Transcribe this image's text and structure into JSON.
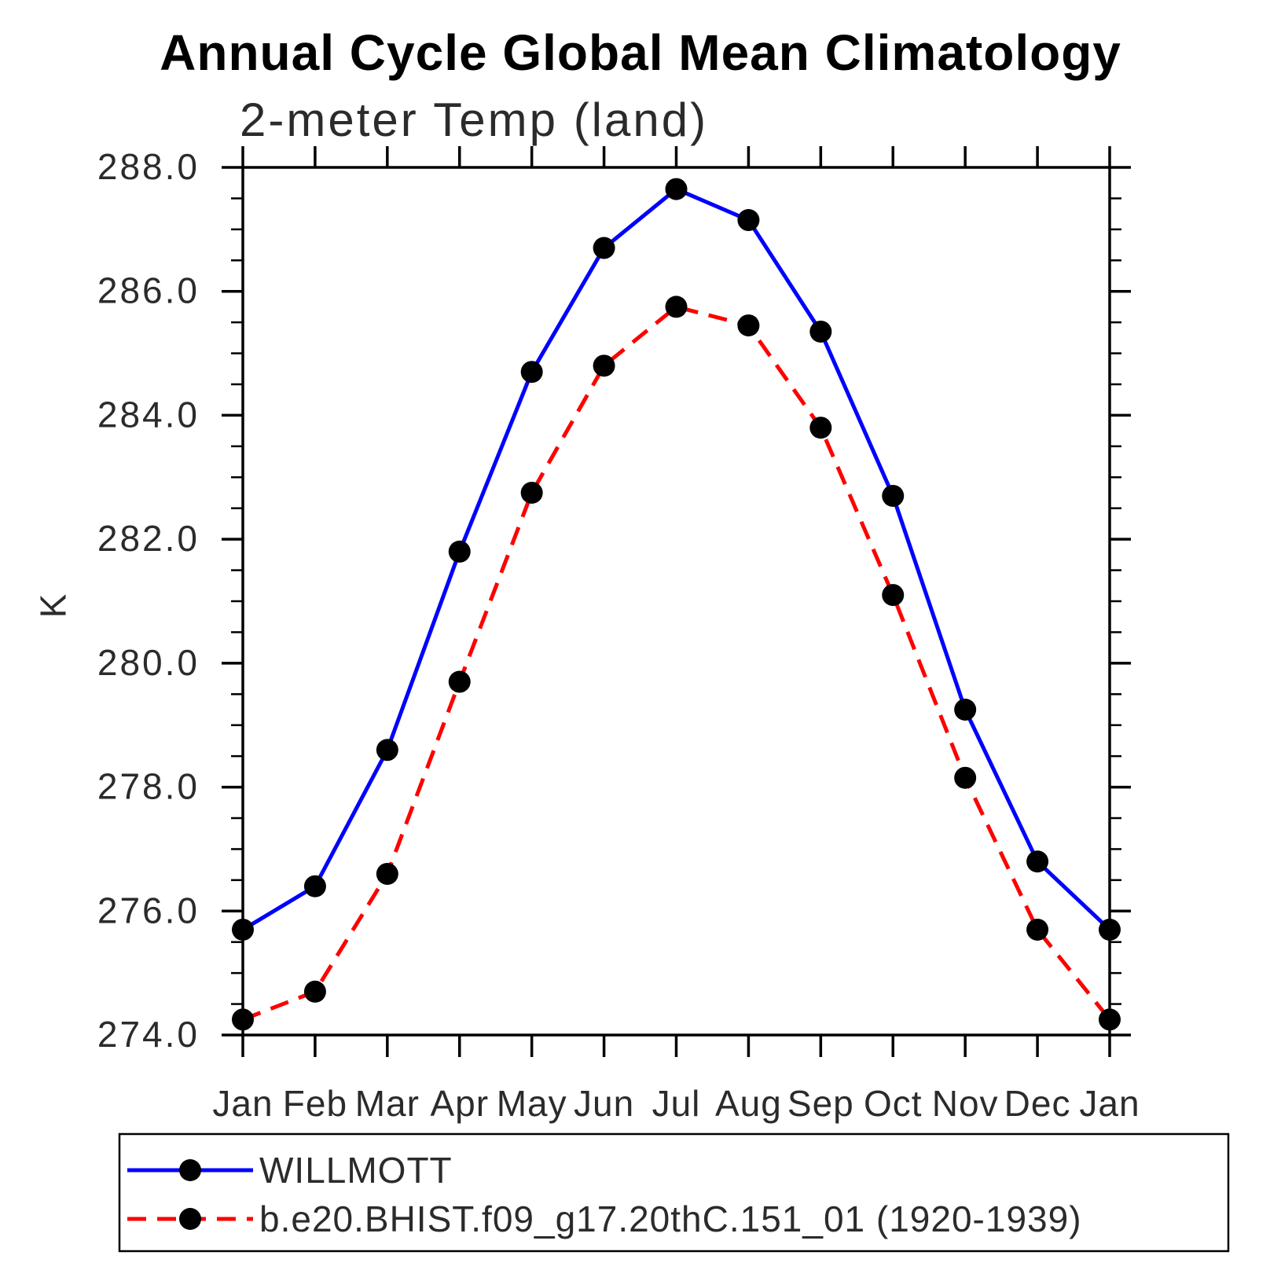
{
  "title": "Annual Cycle Global Mean Climatology",
  "subtitle": "2-meter Temp (land)",
  "ylabel": "K",
  "chart_data": {
    "type": "line",
    "title": "Annual Cycle Global Mean Climatology",
    "subtitle": "2-meter Temp (land)",
    "xlabel": "",
    "ylabel": "K",
    "x_categories": [
      "Jan",
      "Feb",
      "Mar",
      "Apr",
      "May",
      "Jun",
      "Jul",
      "Aug",
      "Sep",
      "Oct",
      "Nov",
      "Dec",
      "Jan"
    ],
    "ylim": [
      274.0,
      288.0
    ],
    "ytick_major_step": 2.0,
    "ytick_minor_step": 0.5,
    "ytick_label_format": "one-decimal",
    "grid": false,
    "legend_position": "bottom",
    "frame_color": "#000000",
    "series": [
      {
        "name": "WILLMOTT",
        "color": "#0000ff",
        "line_style": "solid",
        "marker": "circle",
        "marker_color": "#000000",
        "values": [
          275.7,
          276.4,
          278.6,
          281.8,
          284.7,
          286.7,
          287.65,
          287.15,
          285.35,
          282.7,
          279.25,
          276.8,
          275.7
        ]
      },
      {
        "name": "b.e20.BHIST.f09_g17.20thC.151_01 (1920-1939)",
        "color": "#ff0000",
        "line_style": "dashed",
        "marker": "circle",
        "marker_color": "#000000",
        "values": [
          274.25,
          274.7,
          276.6,
          279.7,
          282.75,
          284.8,
          285.75,
          285.45,
          283.8,
          281.1,
          278.15,
          275.7,
          274.25
        ]
      }
    ]
  }
}
